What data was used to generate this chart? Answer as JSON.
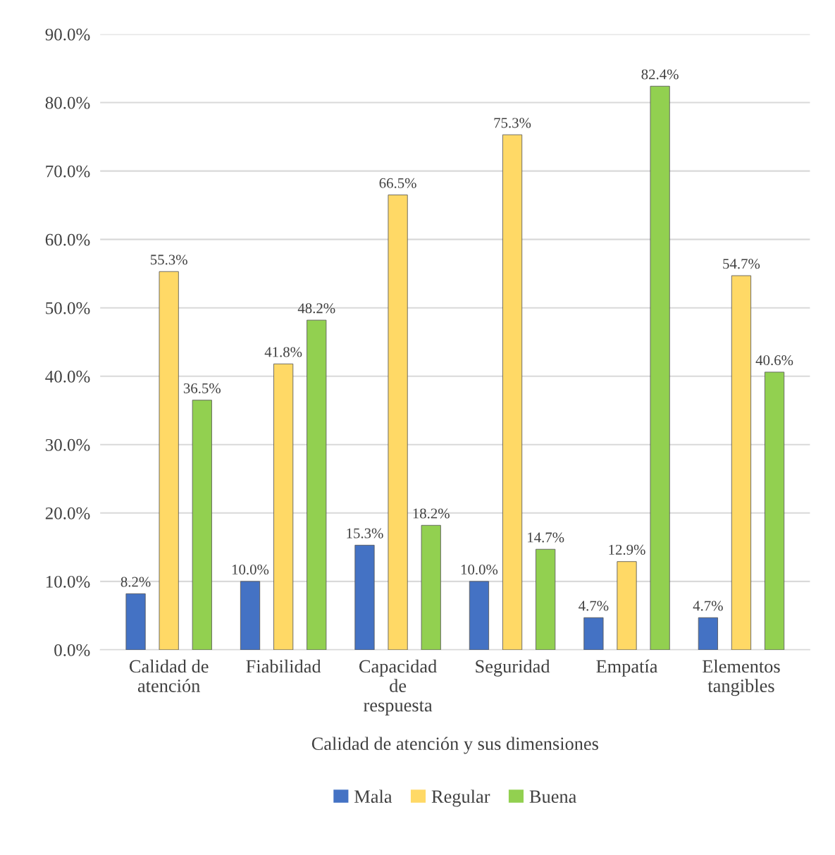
{
  "chart_data": {
    "type": "bar",
    "xlabel": "Calidad de atención y sus dimensiones",
    "categories": [
      "Calidad de\natención",
      "Fiabilidad",
      "Capacidad\nde\nrespuesta",
      "Seguridad",
      "Empatía",
      "Elementos\ntangibles"
    ],
    "series": [
      {
        "name": "Mala",
        "color": "#4472c4",
        "values": [
          8.2,
          10.0,
          15.3,
          10.0,
          4.7,
          4.7
        ],
        "value_labels": [
          "8.2%",
          "10.0%",
          "15.3%",
          "10.0%",
          "4.7%",
          "4.7%"
        ]
      },
      {
        "name": "Regular",
        "color": "#ffd966",
        "values": [
          55.3,
          41.8,
          66.5,
          75.3,
          12.9,
          54.7
        ],
        "value_labels": [
          "55.3%",
          "41.8%",
          "66.5%",
          "75.3%",
          "12.9%",
          "54.7%"
        ]
      },
      {
        "name": "Buena",
        "color": "#92d050",
        "values": [
          36.5,
          48.2,
          18.2,
          14.7,
          82.4,
          40.6
        ],
        "value_labels": [
          "36.5%",
          "48.2%",
          "18.2%",
          "14.7%",
          "82.4%",
          "40.6%"
        ]
      }
    ],
    "ylim": [
      0,
      90
    ],
    "yticks": [
      {
        "value": 0,
        "label": "0.0%"
      },
      {
        "value": 10,
        "label": "10.0%"
      },
      {
        "value": 20,
        "label": "20.0%"
      },
      {
        "value": 30,
        "label": "30.0%"
      },
      {
        "value": 40,
        "label": "40.0%"
      },
      {
        "value": 50,
        "label": "50.0%"
      },
      {
        "value": 60,
        "label": "60.0%"
      },
      {
        "value": 70,
        "label": "70.0%"
      },
      {
        "value": 80,
        "label": "80.0%"
      },
      {
        "value": 90,
        "label": "90.0%"
      }
    ],
    "grid": "y",
    "legend": "bottom"
  }
}
